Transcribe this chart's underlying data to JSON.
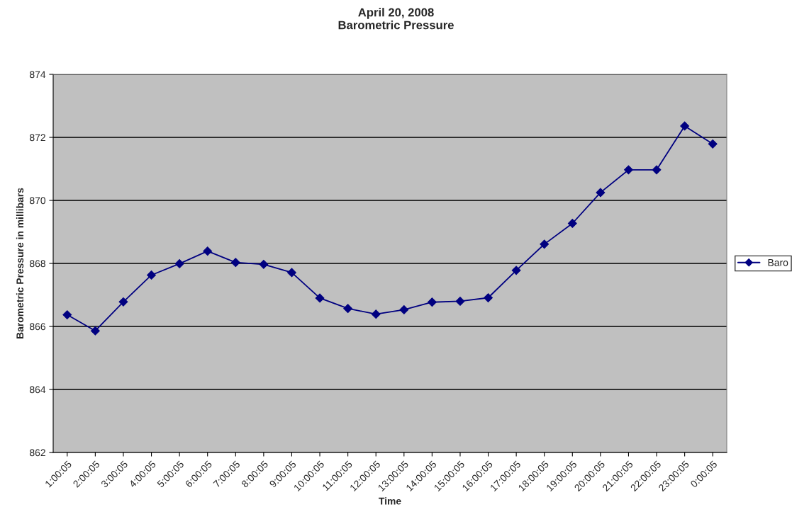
{
  "chart_data": {
    "type": "line",
    "title": "April 20, 2008\nBarometric Pressure",
    "xlabel": "Time",
    "ylabel": "Barometric Pressure in millibars",
    "categories": [
      "1:00:05",
      "2:00:05",
      "3:00:05",
      "4:00:05",
      "5:00:05",
      "6:00:05",
      "7:00:05",
      "8:00:05",
      "9:00:05",
      "10:00:05",
      "11:00:05",
      "12:00:05",
      "13:00:05",
      "14:00:05",
      "15:00:05",
      "16:00:05",
      "17:00:05",
      "18:00:05",
      "19:00:05",
      "20:00:05",
      "21:00:05",
      "22:00:05",
      "23:00:05",
      "0:00:05"
    ],
    "series": [
      {
        "name": "Baro",
        "color": "#000080",
        "values": [
          866.37,
          865.86,
          866.78,
          867.63,
          867.99,
          868.39,
          868.03,
          867.97,
          867.71,
          866.9,
          866.57,
          866.39,
          866.53,
          866.77,
          866.8,
          866.91,
          867.78,
          868.61,
          869.27,
          870.25,
          870.97,
          870.97,
          872.36,
          871.79
        ]
      }
    ],
    "ylim": [
      862,
      874
    ],
    "yticks": [
      862,
      864,
      866,
      868,
      870,
      872,
      874
    ],
    "grid": "y",
    "legend": "right",
    "marker": "diamond",
    "line_style": "solid"
  }
}
